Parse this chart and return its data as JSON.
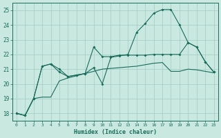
{
  "background_color": "#c8e8e0",
  "grid_color": "#a0ccc4",
  "line_color": "#1a6b5a",
  "xlabel": "Humidex (Indice chaleur)",
  "ylim": [
    17.5,
    25.5
  ],
  "xlim": [
    -0.5,
    23.5
  ],
  "yticks": [
    18,
    19,
    20,
    21,
    22,
    23,
    24,
    25
  ],
  "xticks": [
    0,
    1,
    2,
    3,
    4,
    5,
    6,
    7,
    8,
    9,
    10,
    11,
    12,
    13,
    14,
    15,
    16,
    17,
    18,
    19,
    20,
    21,
    22,
    23
  ],
  "series1_x": [
    0,
    1,
    2,
    3,
    4,
    5,
    6,
    7,
    8,
    9,
    10,
    11,
    12,
    13,
    14,
    15,
    16,
    17,
    18,
    19,
    20,
    21,
    22,
    23
  ],
  "series1_y": [
    18.0,
    17.85,
    19.0,
    21.2,
    21.35,
    21.0,
    20.5,
    20.6,
    20.7,
    22.5,
    21.85,
    21.85,
    21.95,
    21.95,
    21.95,
    21.95,
    22.0,
    22.0,
    22.0,
    22.0,
    22.8,
    22.5,
    21.5,
    20.8
  ],
  "series2_x": [
    0,
    1,
    2,
    3,
    4,
    5,
    6,
    7,
    8,
    9,
    10,
    11,
    12,
    13,
    14,
    15,
    16,
    17,
    18,
    19,
    20,
    21,
    22,
    23
  ],
  "series2_y": [
    18.0,
    17.85,
    19.0,
    21.2,
    21.35,
    20.8,
    20.5,
    20.6,
    20.7,
    21.1,
    20.0,
    21.8,
    21.9,
    22.0,
    23.5,
    24.1,
    24.8,
    25.05,
    25.05,
    24.0,
    22.8,
    22.5,
    21.5,
    20.8
  ],
  "series3_x": [
    0,
    1,
    2,
    3,
    4,
    5,
    6,
    7,
    8,
    9,
    10,
    11,
    12,
    13,
    14,
    15,
    16,
    17,
    18,
    19,
    20,
    21,
    22,
    23
  ],
  "series3_y": [
    18.0,
    17.85,
    19.0,
    19.1,
    19.1,
    20.2,
    20.4,
    20.55,
    20.7,
    20.85,
    21.0,
    21.05,
    21.1,
    21.15,
    21.2,
    21.3,
    21.4,
    21.45,
    20.85,
    20.85,
    21.0,
    20.95,
    20.85,
    20.75
  ]
}
